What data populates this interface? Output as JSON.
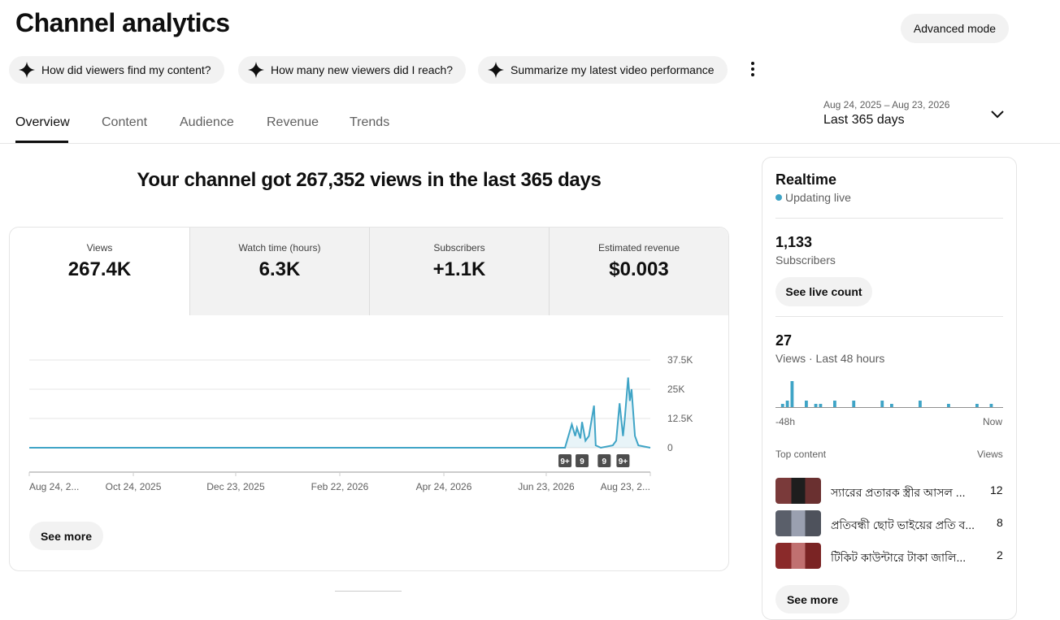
{
  "header": {
    "title": "Channel analytics",
    "advanced_mode": "Advanced mode"
  },
  "prompts": [
    "How did viewers find my content?",
    "How many new viewers did I reach?",
    "Summarize my latest video performance"
  ],
  "tabs": [
    "Overview",
    "Content",
    "Audience",
    "Revenue",
    "Trends"
  ],
  "date_range": {
    "dates": "Aug 24, 2025 – Aug 23, 2026",
    "label": "Last 365 days"
  },
  "headline": "Your channel got 267,352 views in the last 365 days",
  "metrics": [
    {
      "label": "Views",
      "value": "267.4K"
    },
    {
      "label": "Watch time (hours)",
      "value": "6.3K"
    },
    {
      "label": "Subscribers",
      "value": "+1.1K"
    },
    {
      "label": "Estimated revenue",
      "value": "$0.003"
    }
  ],
  "chart_data": [
    {
      "type": "line",
      "x": [
        "2025-08-24",
        "2026-07-04",
        "2026-07-08",
        "2026-07-10",
        "2026-07-11",
        "2026-07-13",
        "2026-07-14",
        "2026-07-16",
        "2026-07-18",
        "2026-07-21",
        "2026-07-22",
        "2026-07-25",
        "2026-08-01",
        "2026-08-03",
        "2026-08-05",
        "2026-08-07",
        "2026-08-08",
        "2026-08-10",
        "2026-08-11",
        "2026-08-12",
        "2026-08-14",
        "2026-08-16",
        "2026-08-23"
      ],
      "values": [
        0,
        0,
        10000,
        5000,
        8500,
        4000,
        11000,
        3000,
        5000,
        18000,
        1000,
        0,
        1000,
        3000,
        19000,
        5000,
        12000,
        30000,
        20000,
        25000,
        5000,
        1000,
        0
      ],
      "color": "#3fa4c6",
      "xlim": [
        "2025-08-24",
        "2026-08-23"
      ],
      "xticks": [
        {
          "value": "2025-08-24",
          "label": "Aug 24, 2..."
        },
        {
          "value": "2025-10-24",
          "label": "Oct 24, 2025"
        },
        {
          "value": "2025-12-23",
          "label": "Dec 23, 2025"
        },
        {
          "value": "2026-02-22",
          "label": "Feb 22, 2026"
        },
        {
          "value": "2026-04-24",
          "label": "Apr 24, 2026"
        },
        {
          "value": "2026-06-23",
          "label": "Jun 23, 2026"
        },
        {
          "value": "2026-08-23",
          "label": "Aug 23, 2..."
        }
      ],
      "ylim": [
        0,
        37500
      ],
      "yticks": [
        0,
        {
          "value": 12500,
          "label": "12.5K"
        },
        {
          "value": 25000,
          "label": "25K"
        },
        {
          "value": 37500,
          "label": "37.5K"
        }
      ],
      "grid": true,
      "annotations": [
        {
          "x": "2026-07-04",
          "label": "9+"
        },
        {
          "x": "2026-07-14",
          "label": "9"
        },
        {
          "x": "2026-07-27",
          "label": "9"
        },
        {
          "x": "2026-08-07",
          "label": "9+"
        }
      ]
    },
    {
      "type": "bar",
      "values": [
        0,
        1,
        2,
        8,
        0,
        0,
        2,
        0,
        1,
        1,
        0,
        0,
        2,
        0,
        0,
        0,
        2,
        0,
        0,
        0,
        0,
        0,
        2,
        0,
        1,
        0,
        0,
        0,
        0,
        0,
        2,
        0,
        0,
        0,
        0,
        0,
        1,
        0,
        0,
        0,
        0,
        0,
        1,
        0,
        0,
        1,
        0,
        0
      ],
      "color": "#3fa4c6"
    }
  ],
  "see_more": "See more",
  "realtime": {
    "title": "Realtime",
    "status": "Updating live",
    "subscribers": "1,133",
    "subscribers_label": "Subscribers",
    "live_count_button": "See live count",
    "views": "27",
    "views_label": "Views · Last 48 hours",
    "axis_start": "-48h",
    "axis_end": "Now",
    "top_content_label": "Top content",
    "views_column": "Views",
    "top_content": [
      {
        "title": "স্যারের প্রতারক স্ত্রীর আসল ...",
        "views": 12
      },
      {
        "title": "প্রতিবন্ধী ছোট ভাইয়ের প্রতি ব...",
        "views": 8
      },
      {
        "title": "টিকিট কাউন্টারে টাকা জালি...",
        "views": 2
      }
    ],
    "see_more": "See more"
  }
}
